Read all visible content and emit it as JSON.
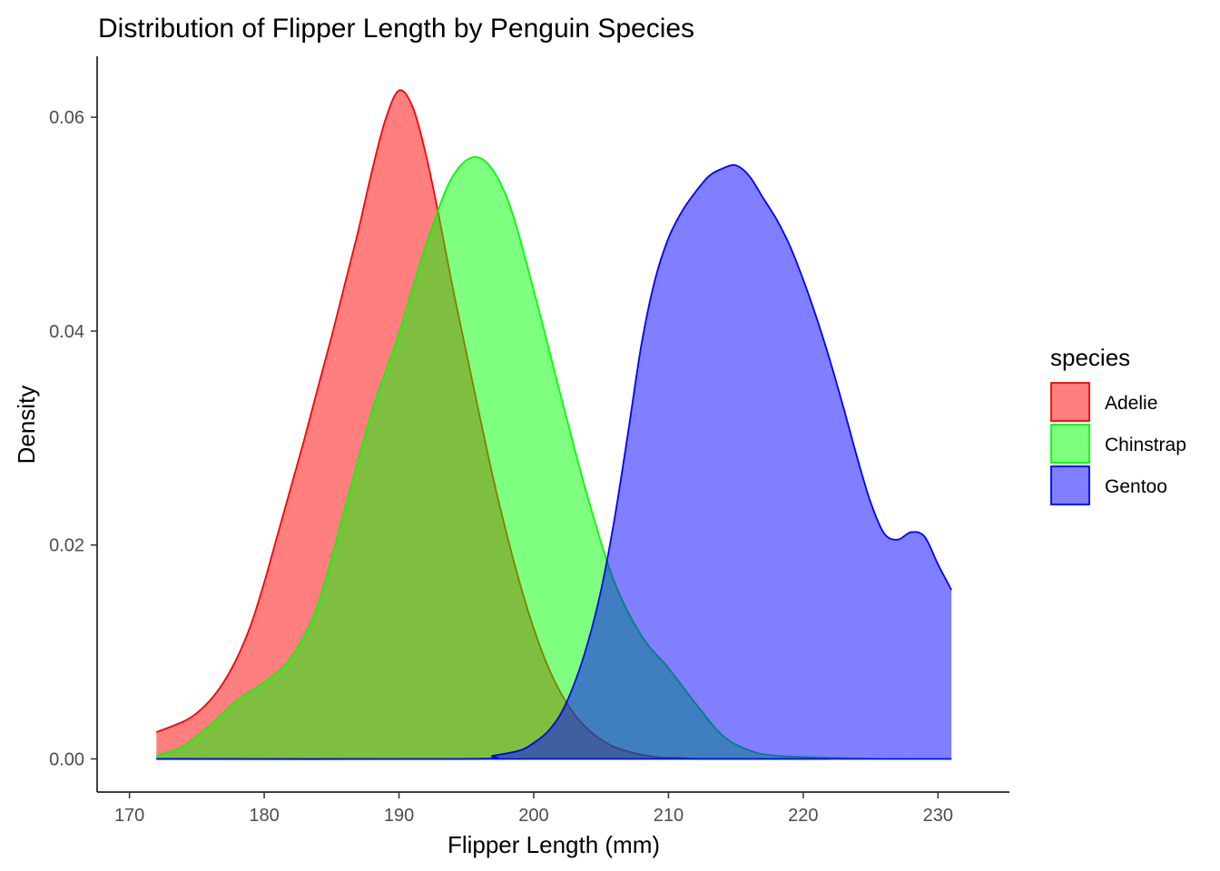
{
  "chart_data": {
    "type": "area",
    "title": "Distribution of Flipper Length by Penguin Species",
    "xlabel": "Flipper Length (mm)",
    "ylabel": "Density",
    "xlim": [
      167.6,
      235.3
    ],
    "ylim": [
      -0.0031,
      0.0657
    ],
    "x_ticks": [
      170,
      180,
      190,
      200,
      210,
      220,
      230
    ],
    "y_ticks": [
      0,
      0.02,
      0.04,
      0.06
    ],
    "x_tick_labels": [
      "170",
      "180",
      "190",
      "200",
      "210",
      "220",
      "230"
    ],
    "y_tick_labels": [
      "0.00",
      "0.02",
      "0.04",
      "0.06"
    ],
    "grid": false,
    "legend": {
      "title": "species",
      "position": "right"
    },
    "series": [
      {
        "name": "Adelie",
        "fill": "#ff0000",
        "stroke": "#ff0000",
        "x": [
          172,
          174,
          175,
          176,
          177,
          178,
          179,
          180,
          181,
          182,
          183,
          184,
          185,
          186,
          187,
          188,
          189,
          190,
          191,
          192,
          193,
          194,
          195,
          196,
          197,
          198,
          199,
          200,
          201,
          202,
          203,
          204,
          205,
          206,
          207,
          208,
          209,
          210,
          211,
          212,
          213,
          214,
          216,
          218,
          220,
          222
        ],
        "y": [
          0.0025,
          0.0035,
          0.0043,
          0.0055,
          0.0072,
          0.0095,
          0.0125,
          0.0165,
          0.021,
          0.0255,
          0.03,
          0.0348,
          0.0395,
          0.0445,
          0.0495,
          0.055,
          0.0598,
          0.0625,
          0.061,
          0.0565,
          0.0505,
          0.044,
          0.038,
          0.032,
          0.0262,
          0.021,
          0.0163,
          0.0122,
          0.0088,
          0.0062,
          0.0042,
          0.0028,
          0.0018,
          0.0011,
          0.0007,
          0.0004,
          0.0002,
          0.0001,
          0.0001,
          0.0,
          0.0,
          0.0,
          0.0,
          0.0,
          0.0,
          0.0
        ]
      },
      {
        "name": "Chinstrap",
        "fill": "#00ff00",
        "stroke": "#00ff00",
        "x": [
          172,
          174,
          176,
          178,
          180,
          182,
          184,
          186,
          188,
          190,
          192,
          194,
          196,
          198,
          200,
          202,
          204,
          206,
          208,
          210,
          212,
          214,
          216,
          218,
          222,
          226,
          231
        ],
        "y": [
          0.0003,
          0.0012,
          0.0032,
          0.0055,
          0.0072,
          0.0095,
          0.0145,
          0.0235,
          0.0325,
          0.0398,
          0.048,
          0.0545,
          0.0562,
          0.0525,
          0.0438,
          0.034,
          0.0245,
          0.0165,
          0.0115,
          0.0085,
          0.0052,
          0.0022,
          0.0008,
          0.0003,
          0.0001,
          0.0,
          0.0
        ]
      },
      {
        "name": "Gentoo",
        "fill": "#0000ff",
        "stroke": "#0000ff",
        "x": [
          172,
          195,
          197,
          199,
          200,
          201,
          202,
          203,
          204,
          205,
          206,
          207,
          208,
          209,
          210,
          211,
          212,
          213,
          214,
          215,
          216,
          217,
          218,
          219,
          220,
          221,
          222,
          223,
          224,
          225,
          226,
          227,
          228,
          229,
          230,
          231
        ],
        "y": [
          0.0,
          0.0,
          0.0003,
          0.0008,
          0.0015,
          0.0025,
          0.0042,
          0.007,
          0.0108,
          0.0158,
          0.0225,
          0.0305,
          0.0388,
          0.0448,
          0.0487,
          0.0512,
          0.053,
          0.0545,
          0.0552,
          0.0555,
          0.0545,
          0.0525,
          0.0505,
          0.048,
          0.0448,
          0.0412,
          0.0372,
          0.0328,
          0.0282,
          0.024,
          0.0211,
          0.0205,
          0.0212,
          0.0208,
          0.0182,
          0.0158
        ]
      }
    ]
  }
}
